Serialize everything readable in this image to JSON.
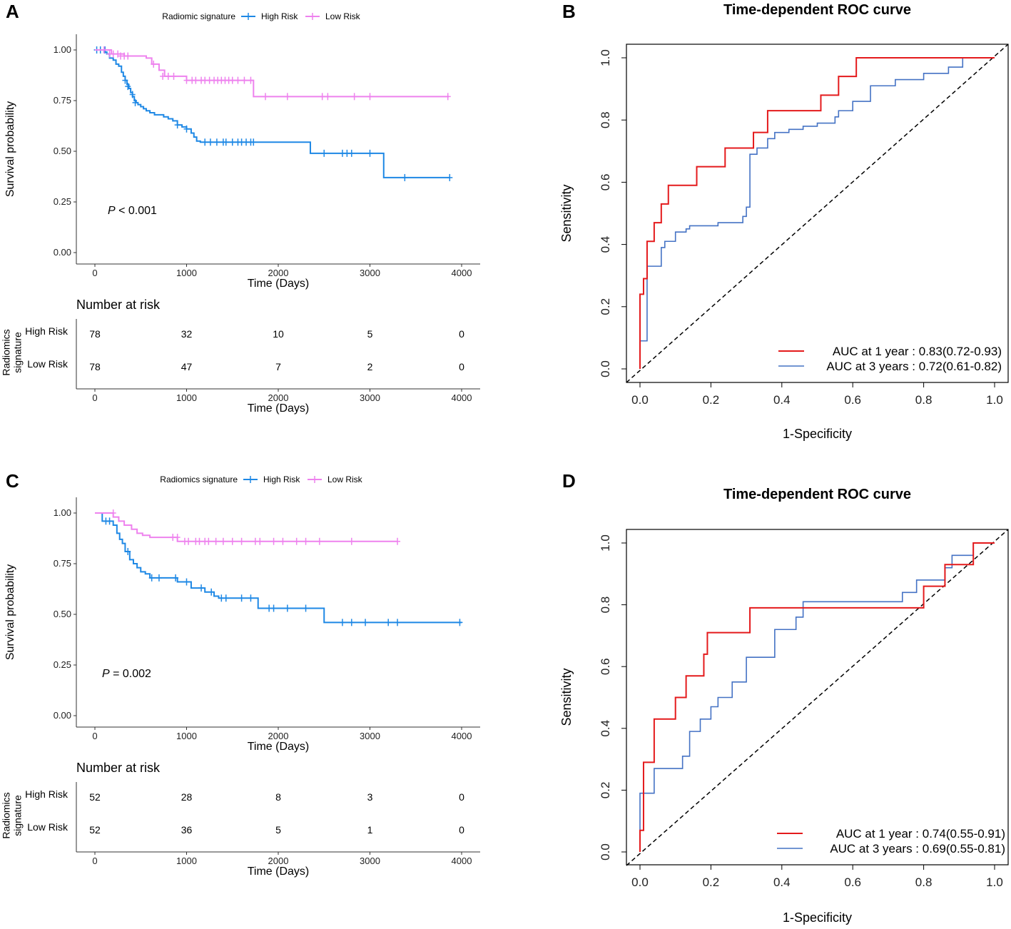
{
  "chart_data": [
    {
      "panel": "A",
      "type": "line",
      "subtype": "kaplan-meier",
      "legend_title": "Radiomic signature",
      "xlabel": "Time (Days)",
      "ylabel": "Survival probability",
      "xlim": [
        0,
        4000
      ],
      "ylim": [
        0,
        1
      ],
      "x_ticks": [
        "0",
        "1000",
        "2000",
        "3000",
        "4000"
      ],
      "y_ticks": [
        "0.00",
        "0.25",
        "0.50",
        "0.75",
        "1.00"
      ],
      "p_value_label": "P",
      "p_value_text": " < 0.001",
      "series": [
        {
          "name": "High Risk",
          "color": "#1E88E5",
          "x": [
            0,
            100,
            130,
            160,
            200,
            230,
            260,
            290,
            310,
            330,
            350,
            370,
            390,
            410,
            430,
            450,
            470,
            500,
            530,
            560,
            600,
            650,
            700,
            750,
            800,
            850,
            900,
            950,
            1000,
            1050,
            1080,
            1110,
            3150,
            3870
          ],
          "y": [
            1.0,
            0.99,
            0.98,
            0.96,
            0.95,
            0.93,
            0.92,
            0.89,
            0.87,
            0.85,
            0.83,
            0.81,
            0.79,
            0.77,
            0.75,
            0.74,
            0.73,
            0.72,
            0.71,
            0.7,
            0.69,
            0.68,
            0.68,
            0.67,
            0.66,
            0.65,
            0.63,
            0.62,
            0.61,
            0.59,
            0.57,
            0.55,
            0.37,
            0.37
          ],
          "steps": [
            [
              1150,
              0.545
            ],
            [
              2350,
              0.49
            ],
            [
              3150,
              0.37
            ]
          ],
          "censors": [
            [
              20,
              1.0
            ],
            [
              60,
              1.0
            ],
            [
              110,
              1.0
            ],
            [
              330,
              0.85
            ],
            [
              360,
              0.82
            ],
            [
              410,
              0.78
            ],
            [
              440,
              0.74
            ],
            [
              900,
              0.63
            ],
            [
              1000,
              0.61
            ],
            [
              1200,
              0.545
            ],
            [
              1260,
              0.545
            ],
            [
              1330,
              0.545
            ],
            [
              1400,
              0.545
            ],
            [
              1430,
              0.545
            ],
            [
              1500,
              0.545
            ],
            [
              1560,
              0.545
            ],
            [
              1600,
              0.545
            ],
            [
              1650,
              0.545
            ],
            [
              1700,
              0.545
            ],
            [
              1730,
              0.545
            ],
            [
              2500,
              0.49
            ],
            [
              2700,
              0.49
            ],
            [
              2750,
              0.49
            ],
            [
              2800,
              0.49
            ],
            [
              3000,
              0.49
            ],
            [
              3380,
              0.37
            ],
            [
              3870,
              0.37
            ]
          ]
        },
        {
          "name": "Low Risk",
          "color": "#EE82EE",
          "x": [
            0,
            180,
            320,
            560,
            620,
            700,
            760,
            1000,
            1730,
            3860
          ],
          "y": [
            1.0,
            0.98,
            0.97,
            0.96,
            0.93,
            0.9,
            0.87,
            0.85,
            0.77,
            0.77
          ],
          "censors": [
            [
              100,
              1.0
            ],
            [
              160,
              0.98
            ],
            [
              200,
              0.98
            ],
            [
              250,
              0.98
            ],
            [
              280,
              0.97
            ],
            [
              320,
              0.97
            ],
            [
              360,
              0.97
            ],
            [
              640,
              0.93
            ],
            [
              740,
              0.87
            ],
            [
              800,
              0.87
            ],
            [
              860,
              0.87
            ],
            [
              1000,
              0.85
            ],
            [
              1060,
              0.85
            ],
            [
              1100,
              0.85
            ],
            [
              1160,
              0.85
            ],
            [
              1200,
              0.85
            ],
            [
              1250,
              0.85
            ],
            [
              1300,
              0.85
            ],
            [
              1340,
              0.85
            ],
            [
              1380,
              0.85
            ],
            [
              1420,
              0.85
            ],
            [
              1460,
              0.85
            ],
            [
              1500,
              0.85
            ],
            [
              1560,
              0.85
            ],
            [
              1630,
              0.85
            ],
            [
              1700,
              0.85
            ],
            [
              1860,
              0.77
            ],
            [
              2100,
              0.77
            ],
            [
              2480,
              0.77
            ],
            [
              2540,
              0.77
            ],
            [
              2830,
              0.77
            ],
            [
              3000,
              0.77
            ],
            [
              3850,
              0.77
            ]
          ]
        }
      ],
      "risk_table": {
        "title": "Number at risk",
        "group_title": "Radiomics signature",
        "rows": [
          {
            "name": "High Risk",
            "values": [
              "78",
              "32",
              "10",
              "5",
              "0"
            ]
          },
          {
            "name": "Low Risk",
            "values": [
              "78",
              "47",
              "7",
              "2",
              "0"
            ]
          }
        ]
      }
    },
    {
      "panel": "B",
      "type": "line",
      "subtype": "roc",
      "title": "Time-dependent ROC curve",
      "xlabel": "1-Specificity",
      "ylabel": "Sensitivity",
      "xlim": [
        0,
        1
      ],
      "ylim": [
        0,
        1
      ],
      "ticks": [
        "0.0",
        "0.2",
        "0.4",
        "0.6",
        "0.8",
        "1.0"
      ],
      "series": [
        {
          "name": "AUC at 1 year : 0.83(0.72-0.93)",
          "color": "#E41A1C",
          "x": [
            0,
            0,
            0.01,
            0.01,
            0.02,
            0.02,
            0.04,
            0.04,
            0.06,
            0.06,
            0.08,
            0.08,
            0.16,
            0.16,
            0.24,
            0.24,
            0.32,
            0.32,
            0.36,
            0.36,
            0.51,
            0.51,
            0.56,
            0.56,
            0.61,
            0.61,
            1.0
          ],
          "y": [
            0,
            0.24,
            0.24,
            0.29,
            0.29,
            0.41,
            0.41,
            0.47,
            0.47,
            0.53,
            0.53,
            0.59,
            0.59,
            0.65,
            0.65,
            0.71,
            0.71,
            0.76,
            0.76,
            0.83,
            0.83,
            0.88,
            0.88,
            0.94,
            0.94,
            1.0,
            1.0
          ]
        },
        {
          "name": "AUC at 3 years : 0.72(0.61-0.82)",
          "color": "#4472C4",
          "x": [
            0,
            0,
            0.02,
            0.02,
            0.06,
            0.06,
            0.07,
            0.07,
            0.1,
            0.1,
            0.13,
            0.13,
            0.14,
            0.14,
            0.22,
            0.22,
            0.29,
            0.29,
            0.3,
            0.3,
            0.31,
            0.31,
            0.33,
            0.33,
            0.36,
            0.36,
            0.38,
            0.38,
            0.42,
            0.42,
            0.46,
            0.46,
            0.5,
            0.5,
            0.55,
            0.55,
            0.56,
            0.56,
            0.6,
            0.6,
            0.65,
            0.65,
            0.72,
            0.72,
            0.8,
            0.8,
            0.87,
            0.87,
            0.91,
            0.91,
            1.0
          ],
          "y": [
            0,
            0.09,
            0.09,
            0.33,
            0.33,
            0.39,
            0.39,
            0.41,
            0.41,
            0.44,
            0.44,
            0.45,
            0.45,
            0.46,
            0.46,
            0.47,
            0.47,
            0.49,
            0.49,
            0.52,
            0.52,
            0.69,
            0.69,
            0.71,
            0.71,
            0.74,
            0.74,
            0.76,
            0.76,
            0.77,
            0.77,
            0.78,
            0.78,
            0.79,
            0.79,
            0.81,
            0.81,
            0.83,
            0.83,
            0.86,
            0.86,
            0.91,
            0.91,
            0.93,
            0.93,
            0.95,
            0.95,
            0.97,
            0.97,
            1.0,
            1.0
          ]
        }
      ]
    },
    {
      "panel": "C",
      "type": "line",
      "subtype": "kaplan-meier",
      "legend_title": "Radiomics signature",
      "xlabel": "Time (Days)",
      "ylabel": "Survival probability",
      "xlim": [
        0,
        4000
      ],
      "ylim": [
        0,
        1
      ],
      "x_ticks": [
        "0",
        "1000",
        "2000",
        "3000",
        "4000"
      ],
      "y_ticks": [
        "0.00",
        "0.25",
        "0.50",
        "0.75",
        "1.00"
      ],
      "p_value_label": "P",
      "p_value_text": " = 0.002",
      "series": [
        {
          "name": "High Risk",
          "color": "#1E88E5",
          "x": [
            0,
            80,
            200,
            240,
            270,
            300,
            330,
            380,
            420,
            460,
            500,
            550,
            600,
            900,
            1050,
            1200,
            1300,
            1350,
            1780,
            2500,
            4000
          ],
          "y": [
            1.0,
            0.96,
            0.94,
            0.9,
            0.87,
            0.85,
            0.81,
            0.77,
            0.75,
            0.73,
            0.71,
            0.7,
            0.68,
            0.66,
            0.63,
            0.61,
            0.59,
            0.58,
            0.53,
            0.46,
            0.46
          ],
          "censors": [
            [
              120,
              0.96
            ],
            [
              160,
              0.96
            ],
            [
              360,
              0.81
            ],
            [
              620,
              0.68
            ],
            [
              700,
              0.68
            ],
            [
              880,
              0.68
            ],
            [
              1000,
              0.66
            ],
            [
              1160,
              0.63
            ],
            [
              1270,
              0.61
            ],
            [
              1380,
              0.58
            ],
            [
              1430,
              0.58
            ],
            [
              1600,
              0.58
            ],
            [
              1700,
              0.58
            ],
            [
              1900,
              0.53
            ],
            [
              1950,
              0.53
            ],
            [
              2100,
              0.53
            ],
            [
              2300,
              0.53
            ],
            [
              2700,
              0.46
            ],
            [
              2800,
              0.46
            ],
            [
              2950,
              0.46
            ],
            [
              3200,
              0.46
            ],
            [
              3300,
              0.46
            ],
            [
              3980,
              0.46
            ]
          ]
        },
        {
          "name": "Low Risk",
          "color": "#EE82EE",
          "x": [
            0,
            200,
            260,
            320,
            400,
            460,
            520,
            600,
            900,
            3300
          ],
          "y": [
            1.0,
            0.98,
            0.96,
            0.94,
            0.92,
            0.9,
            0.89,
            0.88,
            0.86,
            0.86
          ],
          "censors": [
            [
              200,
              1.0
            ],
            [
              850,
              0.88
            ],
            [
              900,
              0.88
            ],
            [
              980,
              0.86
            ],
            [
              1020,
              0.86
            ],
            [
              1100,
              0.86
            ],
            [
              1140,
              0.86
            ],
            [
              1200,
              0.86
            ],
            [
              1240,
              0.86
            ],
            [
              1320,
              0.86
            ],
            [
              1400,
              0.86
            ],
            [
              1500,
              0.86
            ],
            [
              1600,
              0.86
            ],
            [
              1750,
              0.86
            ],
            [
              1800,
              0.86
            ],
            [
              1950,
              0.86
            ],
            [
              2050,
              0.86
            ],
            [
              2200,
              0.86
            ],
            [
              2300,
              0.86
            ],
            [
              2450,
              0.86
            ],
            [
              2800,
              0.86
            ],
            [
              3300,
              0.86
            ]
          ]
        }
      ],
      "risk_table": {
        "title": "Number at risk",
        "group_title": "Radiomics signature",
        "rows": [
          {
            "name": "High Risk",
            "values": [
              "52",
              "28",
              "8",
              "3",
              "0"
            ]
          },
          {
            "name": "Low Risk",
            "values": [
              "52",
              "36",
              "5",
              "1",
              "0"
            ]
          }
        ]
      }
    },
    {
      "panel": "D",
      "type": "line",
      "subtype": "roc",
      "title": "Time-dependent ROC curve",
      "xlabel": "1-Specificity",
      "ylabel": "Sensitivity",
      "xlim": [
        0,
        1
      ],
      "ylim": [
        0,
        1
      ],
      "ticks": [
        "0.0",
        "0.2",
        "0.4",
        "0.6",
        "0.8",
        "1.0"
      ],
      "series": [
        {
          "name": "AUC at 1 year : 0.74(0.55-0.91)",
          "color": "#E41A1C",
          "x": [
            0,
            0,
            0.01,
            0.01,
            0.04,
            0.04,
            0.1,
            0.1,
            0.13,
            0.13,
            0.18,
            0.18,
            0.19,
            0.19,
            0.31,
            0.31,
            0.8,
            0.8,
            0.86,
            0.86,
            0.94,
            0.94,
            1.0
          ],
          "y": [
            0,
            0.07,
            0.07,
            0.29,
            0.29,
            0.43,
            0.43,
            0.5,
            0.5,
            0.57,
            0.57,
            0.64,
            0.64,
            0.71,
            0.71,
            0.79,
            0.79,
            0.86,
            0.86,
            0.93,
            0.93,
            1.0,
            1.0
          ]
        },
        {
          "name": "AUC at 3 years : 0.69(0.55-0.81)",
          "color": "#4472C4",
          "x": [
            0,
            0,
            0.04,
            0.04,
            0.12,
            0.12,
            0.14,
            0.14,
            0.17,
            0.17,
            0.2,
            0.2,
            0.22,
            0.22,
            0.26,
            0.26,
            0.3,
            0.3,
            0.38,
            0.38,
            0.44,
            0.44,
            0.46,
            0.46,
            0.74,
            0.74,
            0.78,
            0.78,
            0.86,
            0.86,
            0.88,
            0.88,
            0.94,
            0.94,
            1.0
          ],
          "y": [
            0,
            0.19,
            0.19,
            0.27,
            0.27,
            0.31,
            0.31,
            0.39,
            0.39,
            0.43,
            0.43,
            0.47,
            0.47,
            0.5,
            0.5,
            0.55,
            0.55,
            0.63,
            0.63,
            0.72,
            0.72,
            0.76,
            0.76,
            0.81,
            0.81,
            0.84,
            0.84,
            0.88,
            0.88,
            0.92,
            0.92,
            0.96,
            0.96,
            1.0,
            1.0
          ]
        }
      ]
    }
  ]
}
